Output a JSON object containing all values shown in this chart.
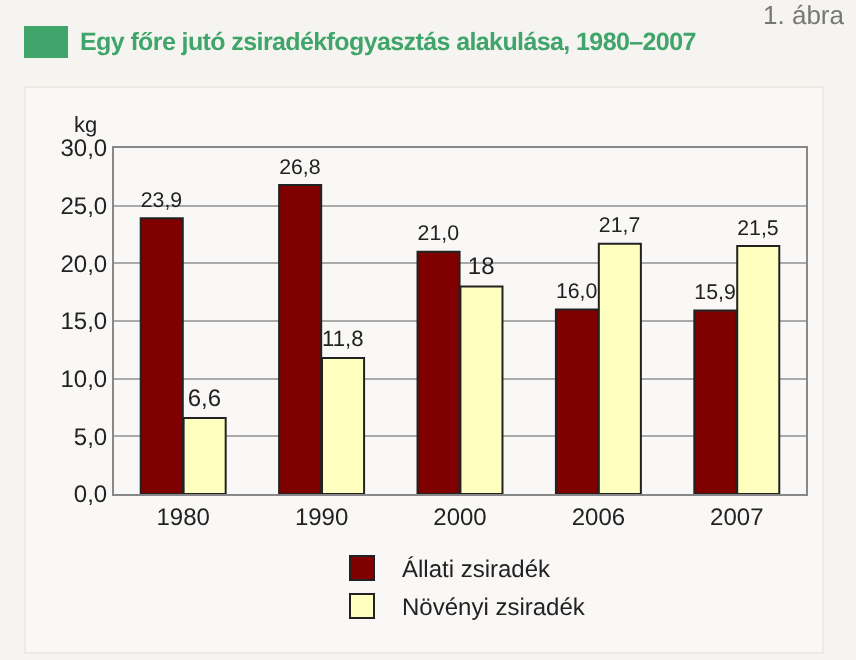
{
  "chart_data": {
    "type": "bar",
    "title": "Egy főre jutó zsiradékfogyasztás alakulása, 1980–2007",
    "ylabel": "kg",
    "annotations": [
      "1. ábra"
    ],
    "categories": [
      "1980",
      "1990",
      "2000",
      "2006",
      "2007"
    ],
    "series": [
      {
        "name": "Állati zsiradék",
        "color": "#800000",
        "values": [
          23.9,
          26.8,
          21.0,
          16.0,
          15.9
        ],
        "value_labels": [
          "23,9",
          "26,8",
          "21,0",
          "16,0",
          "15,9"
        ]
      },
      {
        "name": "Növényi zsiradék",
        "color": "#ffffc0",
        "values": [
          6.6,
          11.8,
          18,
          21.7,
          21.5
        ],
        "value_labels": [
          "6,6",
          "11,8",
          "18",
          "21,7",
          "21,5"
        ]
      }
    ],
    "ylim": [
      0,
      30
    ],
    "yticks": [
      {
        "value": 0,
        "label": "0,0"
      },
      {
        "value": 5,
        "label": "5,0"
      },
      {
        "value": 10,
        "label": "10,0"
      },
      {
        "value": 15,
        "label": "15,0"
      },
      {
        "value": 20,
        "label": "20,0"
      },
      {
        "value": 25,
        "label": "25,0"
      },
      {
        "value": 30,
        "label": "30,0"
      }
    ],
    "grid": "y",
    "legend": "bottom"
  }
}
